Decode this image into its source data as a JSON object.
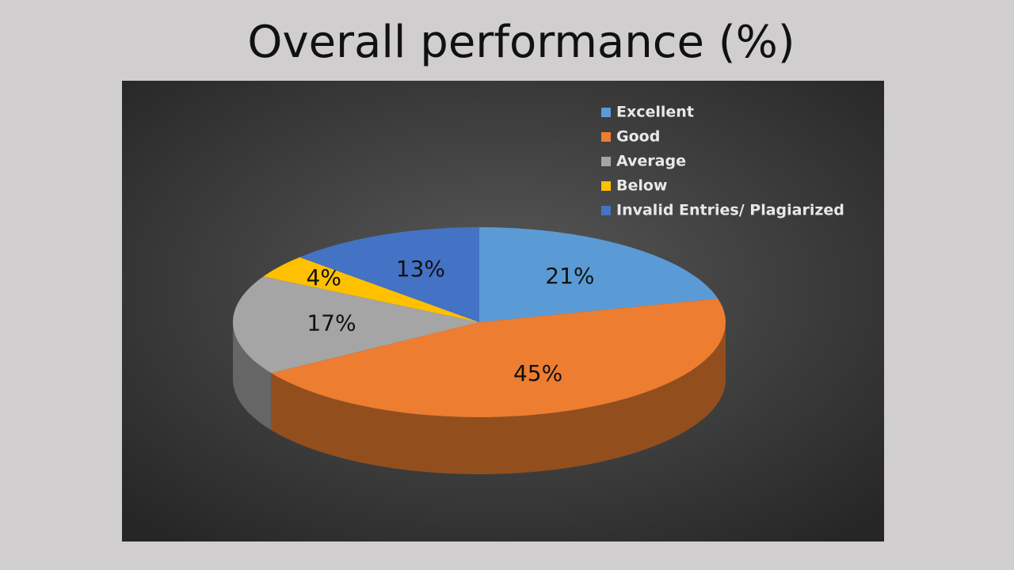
{
  "chart_data": {
    "type": "pie",
    "title": "Overall performance (%)",
    "categories": [
      "Excellent",
      "Good",
      "Average",
      "Below",
      "Invalid Entries/ Plagiarized"
    ],
    "values": [
      21,
      45,
      17,
      4,
      13
    ],
    "value_labels": [
      "21%",
      "45%",
      "17%",
      "4%",
      "13%"
    ],
    "colors": [
      "#5b9bd5",
      "#ed7d31",
      "#a5a5a5",
      "#ffc000",
      "#4472c4"
    ],
    "legend": "top-right"
  }
}
